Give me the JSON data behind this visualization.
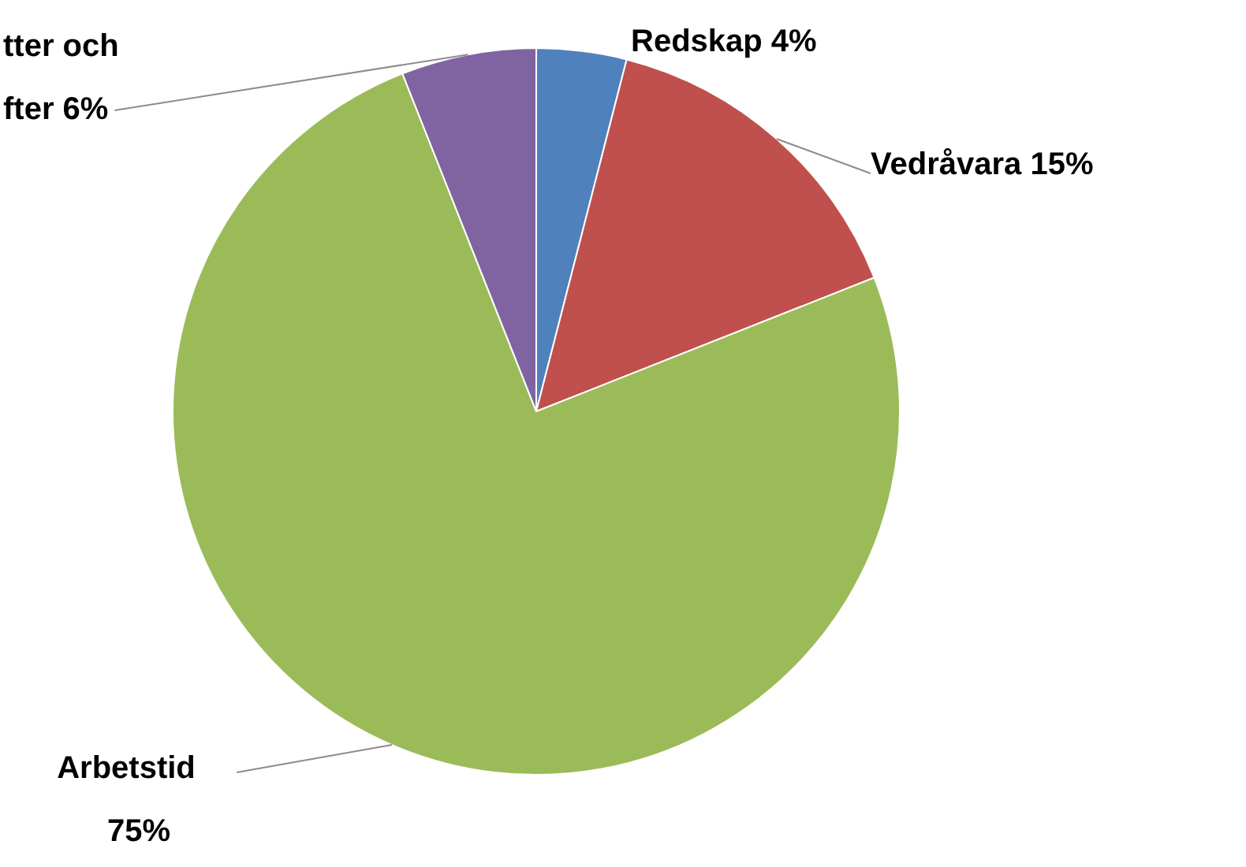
{
  "chart_data": {
    "type": "pie",
    "categories": [
      "Redskap",
      "Vedråvara",
      "Arbetstid",
      "tter och\nfter"
    ],
    "values": [
      4,
      15,
      75,
      6
    ],
    "value_labels": [
      "4%",
      "15%",
      "75%",
      "6%"
    ],
    "colors": [
      "#4f81bd",
      "#c0504d",
      "#9bbb59",
      "#8064a2"
    ],
    "legend": false
  }
}
